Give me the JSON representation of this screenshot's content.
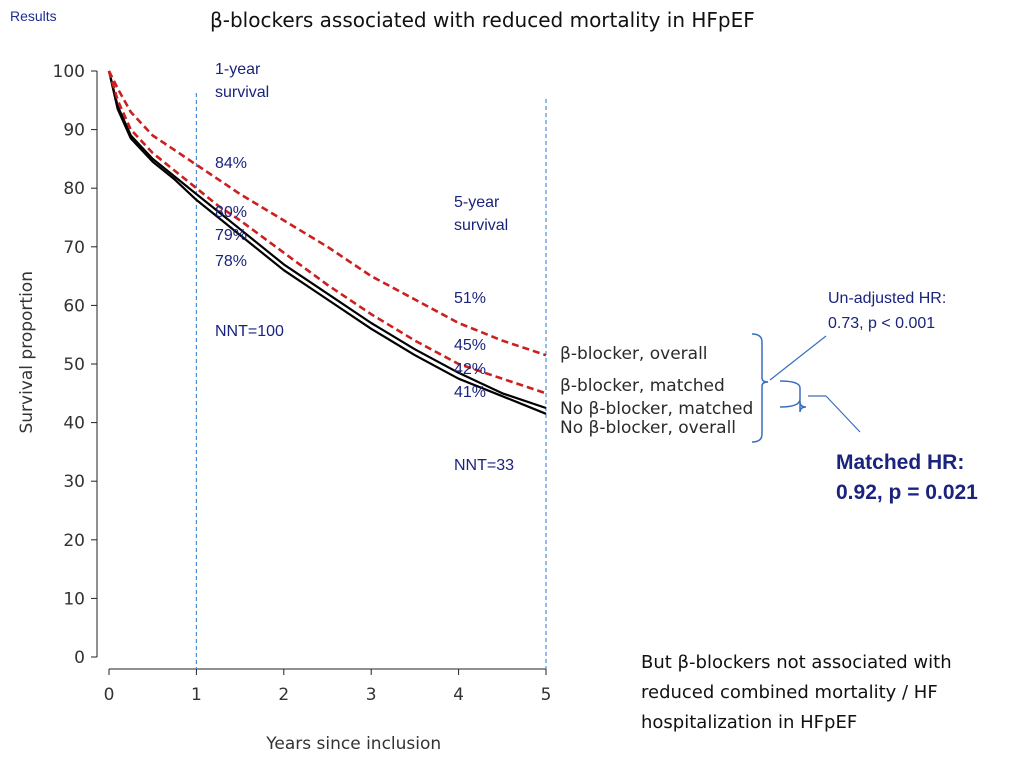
{
  "header": {
    "section_label": "Results",
    "title": "β-blockers associated with reduced mortality in HFpEF"
  },
  "footnote": "But β-blockers not associated with reduced combined mortality / HF hospitalization in HFpEF",
  "colors": {
    "dark_text": "#111111",
    "annotation_blue": "#1a237e",
    "bracket_blue": "#3a6fbf",
    "red_dashed": "#cc1f1f",
    "black_line": "#000000"
  },
  "chart_data": {
    "type": "line",
    "title": "",
    "xlabel": "Years since inclusion",
    "ylabel": "Survival proportion",
    "xlim": [
      0,
      5
    ],
    "ylim": [
      0,
      100
    ],
    "xticks": [
      0,
      1,
      2,
      3,
      4,
      5
    ],
    "yticks": [
      0,
      10,
      20,
      30,
      40,
      50,
      60,
      70,
      80,
      90,
      100
    ],
    "grid": false,
    "x": [
      0,
      0.1,
      0.25,
      0.5,
      0.75,
      1,
      1.25,
      1.5,
      2,
      2.5,
      3,
      3.5,
      4,
      4.5,
      5
    ],
    "series": [
      {
        "name": "β-blocker, overall",
        "style": "dashed",
        "color": "#cc1f1f",
        "values": [
          100,
          97,
          93,
          89,
          86.5,
          84,
          81.5,
          79,
          74.5,
          70,
          65,
          61,
          57,
          54,
          51.5
        ]
      },
      {
        "name": "β-blocker, matched",
        "style": "dashed",
        "color": "#cc1f1f",
        "values": [
          100,
          95,
          90,
          86,
          83,
          80,
          77,
          74.5,
          69,
          63.5,
          58.5,
          54,
          50,
          47.5,
          45
        ]
      },
      {
        "name": "No β-blocker, matched",
        "style": "solid",
        "color": "#000000",
        "values": [
          100,
          94,
          89,
          85,
          82,
          79,
          76,
          73,
          67,
          62,
          57,
          52.5,
          48.5,
          45,
          42.5
        ]
      },
      {
        "name": "No β-blocker, overall",
        "style": "solid",
        "color": "#000000",
        "values": [
          100,
          93.5,
          88.5,
          84.5,
          81.5,
          78,
          75,
          72,
          66,
          61,
          56,
          51.5,
          47.5,
          44.5,
          41.5
        ]
      }
    ],
    "vertical_markers": [
      {
        "x": 1,
        "label_line1": "1-year",
        "label_line2": "survival",
        "nnt": "NNT=100"
      },
      {
        "x": 5,
        "label_line1": "5-year",
        "label_line2": "survival",
        "nnt": "NNT=33"
      }
    ],
    "value_labels_1y": [
      "84%",
      "80%",
      "79%",
      "78%"
    ],
    "value_labels_5y": [
      "51%",
      "45%",
      "42%",
      "41%"
    ],
    "annotations": {
      "unadjusted_line1": "Un-adjusted HR:",
      "unadjusted_line2": "0.73, p < 0.001",
      "matched_line1": "Matched HR:",
      "matched_line2": "0.92, p = 0.021"
    }
  }
}
